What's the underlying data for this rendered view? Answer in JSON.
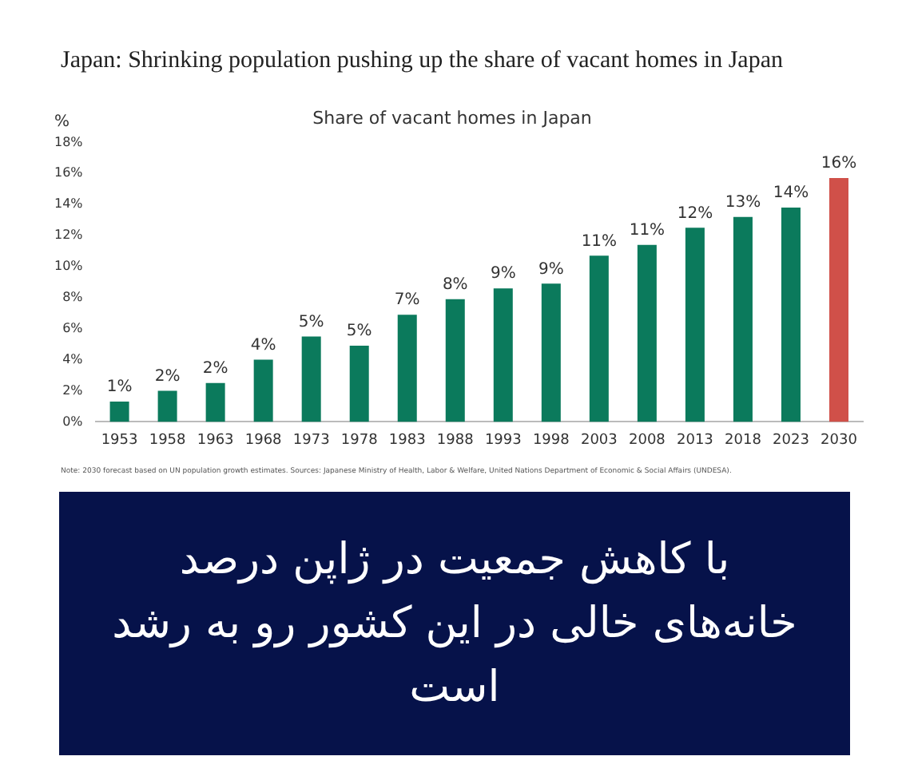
{
  "chart_data": {
    "type": "bar",
    "title": "Japan: Shrinking population pushing up the share of vacant homes in Japan",
    "subtitle": "Share of vacant homes in Japan",
    "ylabel": "%",
    "categories": [
      "1953",
      "1958",
      "1963",
      "1968",
      "1973",
      "1978",
      "1983",
      "1988",
      "1993",
      "1998",
      "2003",
      "2008",
      "2013",
      "2018",
      "2023",
      "2030"
    ],
    "values": [
      1.3,
      2.0,
      2.5,
      4.0,
      5.5,
      4.9,
      6.9,
      7.9,
      8.6,
      8.9,
      10.7,
      11.4,
      12.5,
      13.2,
      13.8,
      15.7
    ],
    "colors": [
      "#0b7a5c",
      "#0b7a5c",
      "#0b7a5c",
      "#0b7a5c",
      "#0b7a5c",
      "#0b7a5c",
      "#0b7a5c",
      "#0b7a5c",
      "#0b7a5c",
      "#0b7a5c",
      "#0b7a5c",
      "#0b7a5c",
      "#0b7a5c",
      "#0b7a5c",
      "#0b7a5c",
      "#d05049"
    ],
    "value_labels": [
      "1%",
      "2%",
      "2%",
      "4%",
      "5%",
      "5%",
      "7%",
      "8%",
      "9%",
      "9%",
      "11%",
      "11%",
      "12%",
      "13%",
      "14%",
      "16%"
    ],
    "ylim": [
      0,
      18
    ],
    "yticks": [
      {
        "value": 0,
        "label": "0%"
      },
      {
        "value": 2,
        "label": "2%"
      },
      {
        "value": 4,
        "label": "4%"
      },
      {
        "value": 6,
        "label": "6%"
      },
      {
        "value": 8,
        "label": "8%"
      },
      {
        "value": 10,
        "label": "10%"
      },
      {
        "value": 12,
        "label": "12%"
      },
      {
        "value": 14,
        "label": "14%"
      },
      {
        "value": 16,
        "label": "16%"
      },
      {
        "value": 18,
        "label": "18%"
      }
    ],
    "grid": false,
    "legend": false,
    "annotations": [
      "Note: 2030 forecast based on UN population growth estimates. Sources: Japanese Ministry of Health, Labor & Welfare, United Nations Department of Economic & Social Affairs (UNDESA).",
      "با کاهش جمعیت در ژاپن درصد خانه‌های خالی در این کشور رو به رشد است"
    ]
  }
}
